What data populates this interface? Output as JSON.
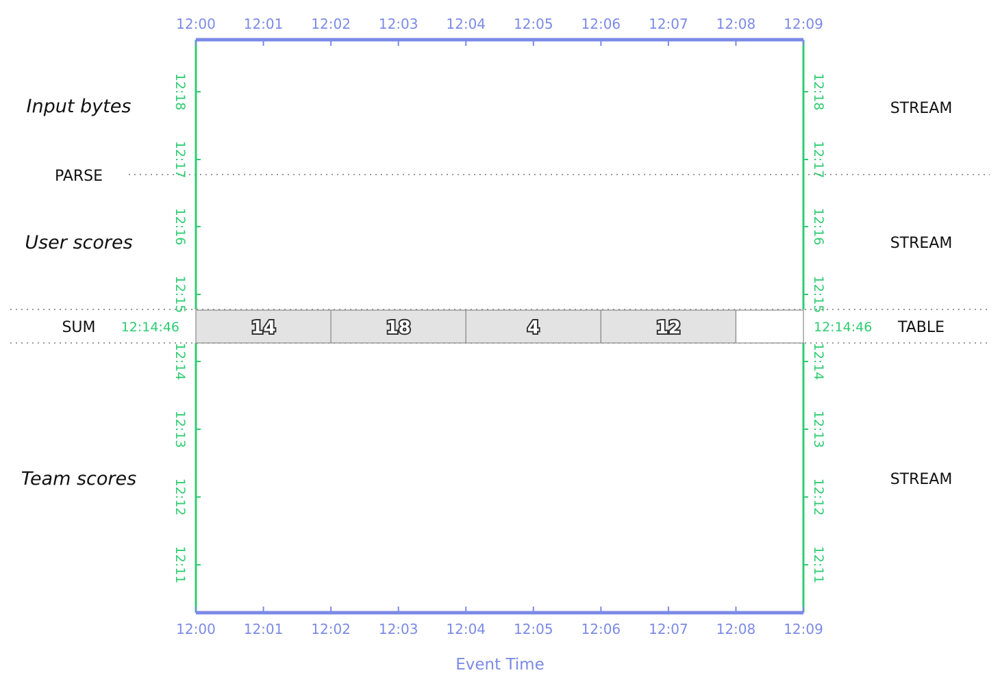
{
  "colors": {
    "event_time_axis": "#7b8ae6",
    "processing_time_axis": "#2ecc71",
    "cell_fill": "#e3e3e3",
    "cell_stroke": "#888888",
    "divider": "#999999"
  },
  "event_time": {
    "title": "Event Time",
    "ticks_top": [
      "12:00",
      "12:01",
      "12:02",
      "12:03",
      "12:04",
      "12:05",
      "12:06",
      "12:07",
      "12:08",
      "12:09"
    ],
    "ticks_bottom": [
      "12:00",
      "12:01",
      "12:02",
      "12:03",
      "12:04",
      "12:05",
      "12:06",
      "12:07",
      "12:08",
      "12:09"
    ]
  },
  "processing_time": {
    "ticks": [
      "12:11",
      "12:12",
      "12:13",
      "12:14",
      "12:15",
      "12:16",
      "12:17",
      "12:18"
    ],
    "current_left": "12:14:46",
    "current_right": "12:14:46"
  },
  "stages": {
    "input": "Input bytes",
    "user_scores": "User scores",
    "team_scores": "Team scores"
  },
  "operations": {
    "parse": "PARSE",
    "sum": "SUM"
  },
  "types": {
    "input": "STREAM",
    "user_scores": "STREAM",
    "sum": "TABLE",
    "team_scores": "STREAM"
  },
  "table_cells": [
    {
      "value": "14"
    },
    {
      "value": "18"
    },
    {
      "value": "4"
    },
    {
      "value": "12"
    },
    {
      "value": ""
    }
  ]
}
